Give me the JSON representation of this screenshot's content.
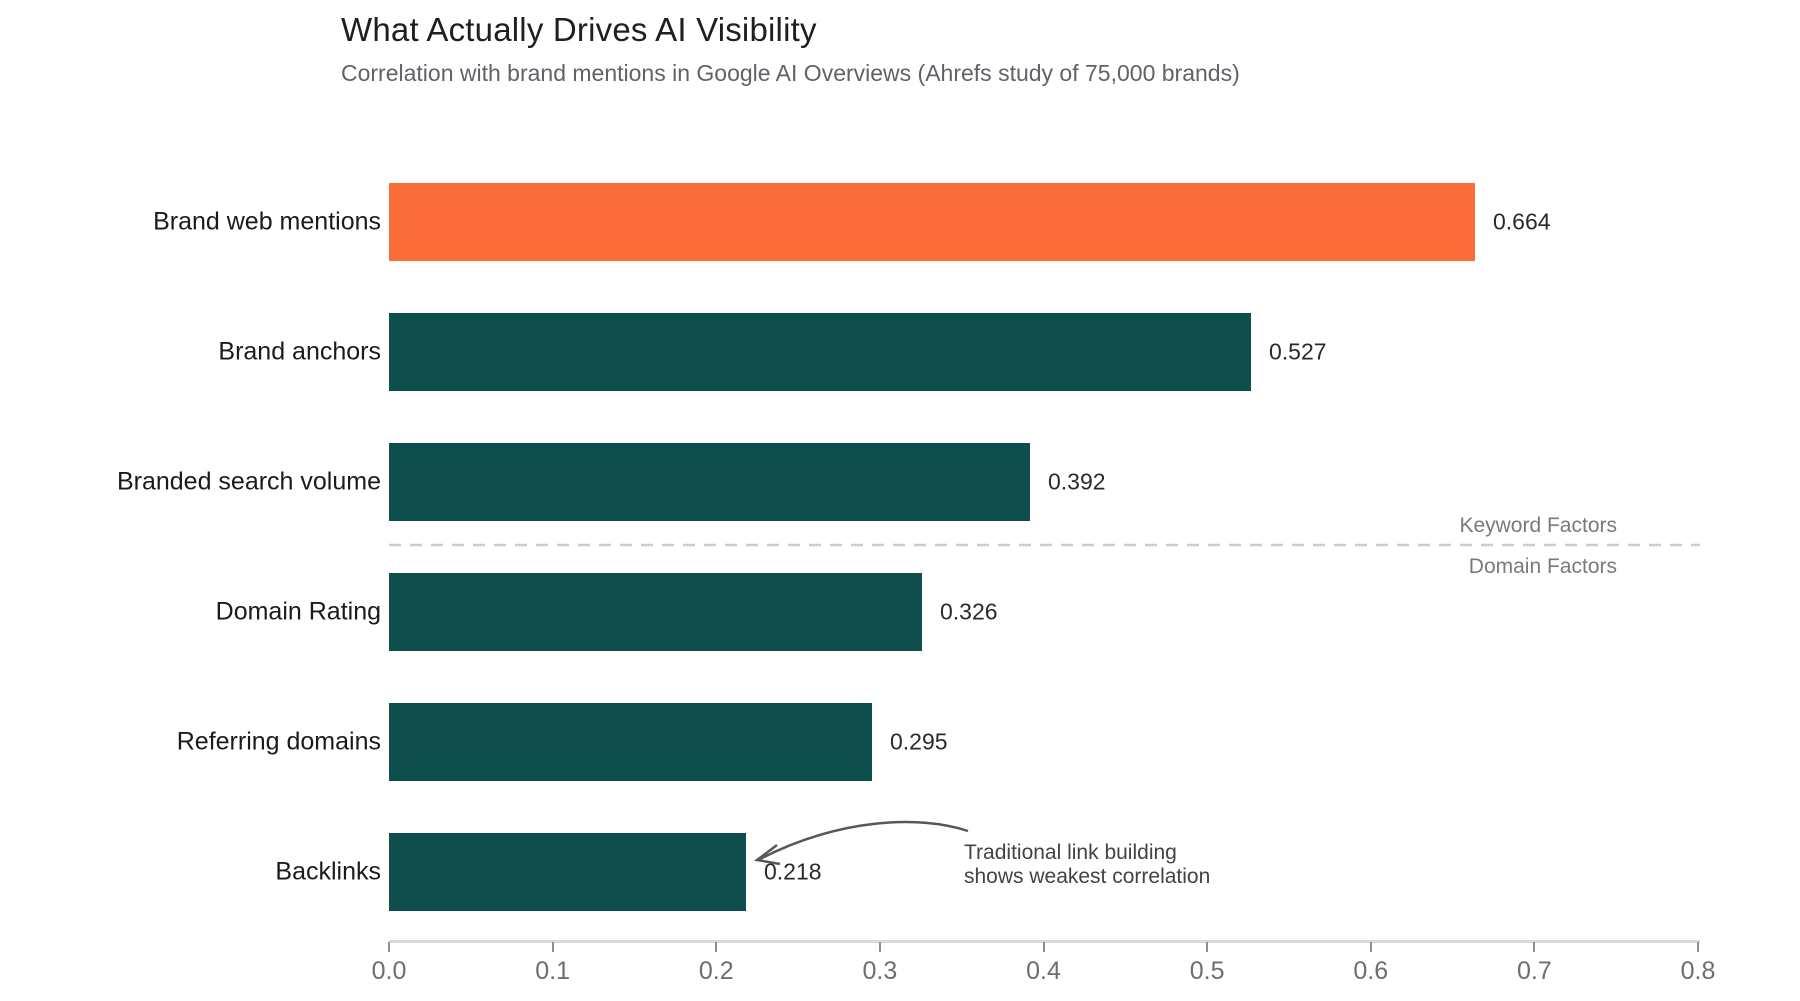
{
  "chart_data": {
    "type": "bar",
    "orientation": "horizontal",
    "title": "What Actually Drives AI Visibility",
    "subtitle": "Correlation with brand mentions in Google AI Overviews (Ahrefs study of 75,000 brands)",
    "categories": [
      "Brand web mentions",
      "Brand anchors",
      "Branded search volume",
      "Domain Rating",
      "Referring domains",
      "Backlinks"
    ],
    "values": [
      0.664,
      0.527,
      0.392,
      0.326,
      0.295,
      0.218
    ],
    "value_labels": [
      "0.664",
      "0.527",
      "0.392",
      "0.326",
      "0.295",
      "0.218"
    ],
    "bar_colors": [
      "#FA6C38",
      "#0E4E4C",
      "#0E4E4C",
      "#0E4E4C",
      "#0E4E4C",
      "#0E4E4C"
    ],
    "xlabel": "",
    "ylabel": "",
    "xlim": [
      0.0,
      0.8
    ],
    "xticks": [
      "0.0",
      "0.1",
      "0.2",
      "0.3",
      "0.4",
      "0.5",
      "0.6",
      "0.7",
      "0.8"
    ],
    "grid": false,
    "legend": "none",
    "divider": {
      "above_label": "Keyword Factors",
      "below_label": "Domain Factors",
      "style": "dashed",
      "position_between": [
        "Branded search volume",
        "Domain Rating"
      ]
    },
    "annotation": {
      "lines": [
        "Traditional link building",
        "shows weakest correlation"
      ],
      "target_bar": "Backlinks",
      "target_value": "0.218"
    }
  },
  "colors": {
    "highlight_bar": "#FA6C38",
    "base_bar": "#0E4E4C",
    "title_text": "#1f1f1f",
    "subtitle_text": "#5f6368",
    "axis_text": "#6b6f73",
    "factor_text": "#7a7a7a",
    "annotation_text": "#3f4448",
    "divider_line": "#cccccc"
  }
}
